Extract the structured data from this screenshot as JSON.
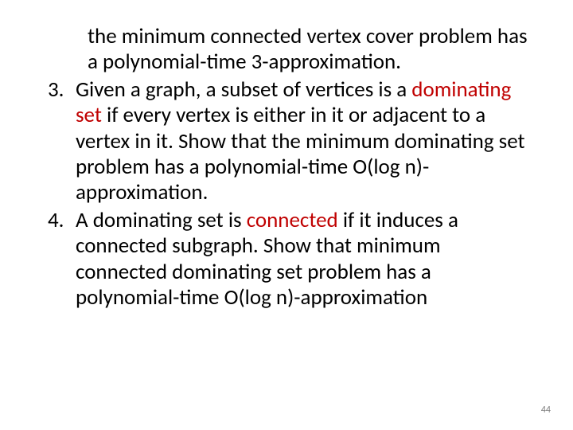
{
  "slide": {
    "continuation_text_part1": " the minimum connected vertex cover problem has a polynomial-time 3-approximation.",
    "item3": {
      "number": "3.",
      "text_pre": "Given a graph, a subset of vertices is a ",
      "highlight": "dominating set",
      "text_post": " if every vertex is either in it or adjacent to a vertex in it. Show that the minimum dominating set problem has a polynomial-time O(log n)-approximation."
    },
    "item4": {
      "number": "4.",
      "text_pre": "A dominating set is ",
      "highlight": "connected",
      "text_post": " if it induces a connected subgraph. Show that  minimum connected dominating set problem has a polynomial-time O(log n)-approximation"
    },
    "page_number": "44"
  },
  "colors": {
    "background": "#ffffff",
    "text": "#000000",
    "highlight": "#c00000",
    "page_number": "#808080"
  },
  "typography": {
    "body_fontsize": 27,
    "page_number_fontsize": 12,
    "font_family": "Calibri"
  }
}
